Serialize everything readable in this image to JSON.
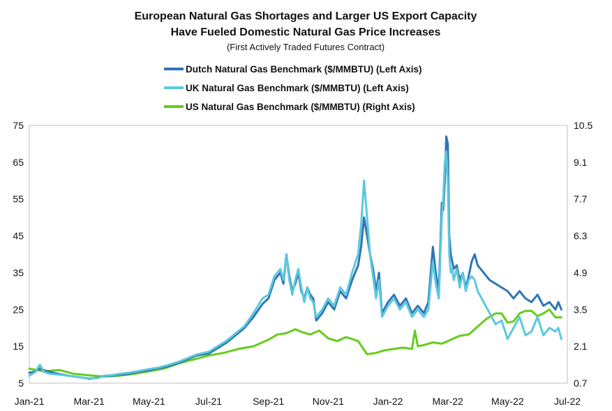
{
  "chart_data": {
    "type": "line",
    "title_lines": [
      "European Natural Gas Shortages and Larger US Export Capacity",
      "Have Fueled Domestic Natural Gas Price Increases"
    ],
    "subtitle": "(First Actively Traded Futures Contract)",
    "x_tick_labels": [
      "Jan-21",
      "Mar-21",
      "May-21",
      "Jul-21",
      "Sep-21",
      "Nov-21",
      "Jan-22",
      "Mar-22",
      "May-22",
      "Jul-22"
    ],
    "x_range_months": [
      0,
      18
    ],
    "y_left": {
      "ylim": [
        5,
        75
      ],
      "ticks": [
        5,
        15,
        25,
        35,
        45,
        55,
        65,
        75
      ]
    },
    "y_right": {
      "ylim": [
        0.7,
        10.5
      ],
      "ticks": [
        "0.7",
        "2.1",
        "3.5",
        "4.9",
        "6.3",
        "7.7",
        "9.1",
        "10.5"
      ]
    },
    "grid": false,
    "legend_position": "top-center",
    "colors": {
      "dutch": "#2e75b6",
      "uk": "#5bc8dc",
      "us": "#66cc1a"
    },
    "series": [
      {
        "name": "Dutch Natural Gas Benchmark ($/MMBTU) (Left Axis)",
        "axis": "left",
        "color_key": "dutch",
        "x": [
          0,
          0.2,
          0.35,
          0.5,
          0.7,
          1.0,
          1.3,
          1.5,
          1.8,
          2.0,
          2.3,
          2.5,
          2.8,
          3.0,
          3.3,
          3.6,
          4.0,
          4.3,
          4.6,
          5.0,
          5.3,
          5.6,
          6.0,
          6.3,
          6.6,
          6.9,
          7.2,
          7.5,
          7.8,
          8.0,
          8.2,
          8.4,
          8.5,
          8.6,
          8.7,
          8.8,
          8.9,
          9.0,
          9.1,
          9.2,
          9.3,
          9.4,
          9.5,
          9.6,
          9.8,
          10.0,
          10.2,
          10.4,
          10.6,
          10.8,
          11.0,
          11.1,
          11.2,
          11.3,
          11.4,
          11.5,
          11.6,
          11.7,
          11.8,
          12.0,
          12.2,
          12.4,
          12.6,
          12.8,
          13.0,
          13.2,
          13.35,
          13.5,
          13.6,
          13.7,
          13.8,
          13.85,
          13.9,
          13.95,
          14.0,
          14.05,
          14.1,
          14.15,
          14.2,
          14.3,
          14.4,
          14.5,
          14.6,
          14.7,
          14.8,
          14.9,
          15.0,
          15.2,
          15.4,
          15.6,
          15.8,
          16.0,
          16.2,
          16.4,
          16.6,
          16.8,
          17.0,
          17.2,
          17.4,
          17.6,
          17.7,
          17.8
        ],
        "values": [
          7.8,
          8.2,
          9.0,
          8.5,
          8.0,
          7.5,
          7.0,
          6.8,
          6.5,
          6.2,
          6.5,
          7.0,
          7.0,
          7.3,
          7.5,
          8.0,
          8.5,
          9.0,
          9.5,
          10.5,
          11.5,
          12.5,
          13.0,
          14.5,
          16.0,
          18.0,
          20.0,
          23.0,
          26.5,
          28.0,
          33.0,
          35.0,
          32.0,
          40.0,
          34.0,
          30.0,
          32.0,
          35.0,
          30.0,
          28.0,
          31.0,
          29.0,
          28.0,
          22.0,
          24.0,
          27.0,
          25.0,
          30.0,
          28.0,
          33.0,
          37.0,
          42.0,
          50.0,
          45.0,
          40.0,
          36.0,
          30.0,
          35.0,
          24.0,
          27.0,
          29.0,
          26.0,
          28.0,
          24.0,
          26.0,
          24.0,
          27.0,
          42.0,
          35.0,
          30.0,
          54.0,
          52.0,
          60.0,
          72.0,
          70.0,
          45.0,
          40.0,
          38.0,
          36.0,
          37.0,
          33.0,
          35.0,
          31.0,
          34.0,
          38.0,
          40.0,
          37.0,
          35.0,
          33.0,
          32.0,
          31.0,
          30.0,
          28.0,
          30.0,
          28.0,
          27.0,
          29.0,
          26.0,
          27.0,
          25.0,
          27.0,
          25.0
        ]
      },
      {
        "name": "UK Natural Gas Benchmark ($/MMBTU) (Left Axis)",
        "axis": "left",
        "color_key": "uk",
        "x": [
          0,
          0.2,
          0.35,
          0.5,
          0.7,
          1.0,
          1.3,
          1.5,
          1.8,
          2.0,
          2.3,
          2.5,
          2.8,
          3.0,
          3.3,
          3.6,
          4.0,
          4.3,
          4.6,
          5.0,
          5.3,
          5.6,
          6.0,
          6.3,
          6.6,
          6.9,
          7.2,
          7.5,
          7.8,
          8.0,
          8.2,
          8.4,
          8.5,
          8.6,
          8.7,
          8.8,
          8.9,
          9.0,
          9.1,
          9.2,
          9.3,
          9.4,
          9.5,
          9.6,
          9.8,
          10.0,
          10.2,
          10.4,
          10.6,
          10.8,
          11.0,
          11.1,
          11.2,
          11.3,
          11.4,
          11.5,
          11.6,
          11.7,
          11.8,
          12.0,
          12.2,
          12.4,
          12.6,
          12.8,
          13.0,
          13.2,
          13.35,
          13.5,
          13.6,
          13.7,
          13.8,
          13.85,
          13.9,
          13.95,
          14.0,
          14.05,
          14.1,
          14.15,
          14.2,
          14.3,
          14.4,
          14.5,
          14.6,
          14.7,
          14.8,
          14.9,
          15.0,
          15.2,
          15.4,
          15.6,
          15.8,
          16.0,
          16.2,
          16.4,
          16.6,
          16.8,
          17.0,
          17.2,
          17.4,
          17.6,
          17.7,
          17.8
        ],
        "values": [
          7.0,
          8.0,
          10.0,
          8.0,
          7.5,
          7.3,
          7.0,
          6.8,
          6.5,
          6.3,
          6.4,
          7.0,
          7.2,
          7.5,
          7.8,
          8.2,
          8.8,
          9.2,
          9.8,
          10.8,
          11.8,
          12.8,
          13.5,
          15.0,
          16.5,
          18.5,
          20.5,
          24.0,
          28.0,
          29.0,
          34.0,
          36.0,
          33.0,
          40.0,
          33.0,
          29.0,
          33.0,
          36.0,
          31.0,
          27.0,
          31.0,
          28.0,
          27.0,
          23.0,
          25.0,
          28.0,
          26.0,
          31.0,
          29.0,
          35.0,
          40.0,
          48.0,
          60.0,
          50.0,
          40.0,
          34.0,
          28.0,
          33.0,
          23.0,
          26.0,
          28.0,
          25.0,
          27.0,
          23.0,
          25.0,
          23.0,
          25.0,
          38.0,
          32.0,
          28.0,
          50.0,
          55.0,
          65.0,
          68.0,
          60.0,
          40.0,
          35.0,
          36.0,
          33.0,
          36.0,
          31.0,
          35.0,
          30.0,
          33.0,
          34.0,
          33.0,
          30.0,
          27.0,
          24.0,
          21.0,
          22.0,
          17.0,
          20.0,
          23.0,
          18.0,
          19.0,
          23.0,
          18.0,
          20.0,
          19.0,
          20.0,
          17.0
        ]
      },
      {
        "name": "US Natural Gas Benchmark ($/MMBTU) (Right Axis)",
        "axis": "right",
        "color_key": "us",
        "x": [
          0,
          0.5,
          1.0,
          1.5,
          2.0,
          2.5,
          3.0,
          3.5,
          4.0,
          4.5,
          5.0,
          5.5,
          6.0,
          6.5,
          7.0,
          7.5,
          8.0,
          8.3,
          8.6,
          8.9,
          9.1,
          9.4,
          9.7,
          10.0,
          10.3,
          10.6,
          11.0,
          11.3,
          11.6,
          11.9,
          12.2,
          12.5,
          12.8,
          12.9,
          13.0,
          13.2,
          13.5,
          13.8,
          14.1,
          14.4,
          14.7,
          15.0,
          15.3,
          15.6,
          15.8,
          16.0,
          16.2,
          16.4,
          16.6,
          16.8,
          17.0,
          17.2,
          17.4,
          17.6,
          17.8
        ],
        "values": [
          1.25,
          1.15,
          1.2,
          1.05,
          1.0,
          0.95,
          0.98,
          1.05,
          1.15,
          1.25,
          1.45,
          1.6,
          1.75,
          1.85,
          2.0,
          2.1,
          2.35,
          2.55,
          2.6,
          2.75,
          2.65,
          2.55,
          2.7,
          2.4,
          2.3,
          2.45,
          2.3,
          1.8,
          1.85,
          1.95,
          2.0,
          2.05,
          2.0,
          2.7,
          2.1,
          2.15,
          2.25,
          2.2,
          2.35,
          2.5,
          2.55,
          2.85,
          3.15,
          3.35,
          3.35,
          3.0,
          3.05,
          3.35,
          3.45,
          3.45,
          3.25,
          3.35,
          3.5,
          3.2,
          3.2
        ]
      }
    ]
  }
}
